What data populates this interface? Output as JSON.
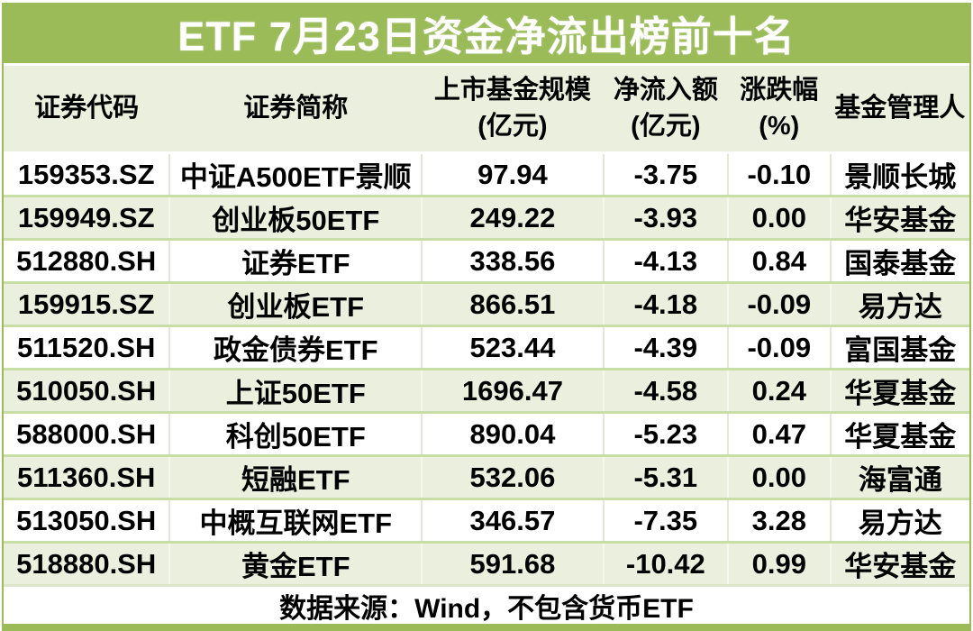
{
  "title": "ETF 7月23日资金净流出榜前十名",
  "colors": {
    "title_bg": "#9abb58",
    "title_text": "#ffffff",
    "header_bg": "#eaf0dd",
    "row_alt_bg": "#eaf0dd",
    "row_border": "#c9dda6",
    "frame_green": "#9abb58",
    "text": "#000000"
  },
  "footer": {
    "source_note": "数据来源：Wind，不包含货币ETF"
  },
  "chart_data": {
    "type": "table",
    "title": "ETF 7月23日资金净流出榜前十名",
    "columns": [
      {
        "key": "code",
        "label": "证券代码",
        "label2": ""
      },
      {
        "key": "name",
        "label": "证券简称",
        "label2": ""
      },
      {
        "key": "size",
        "label": "上市基金规模",
        "label2": "(亿元)"
      },
      {
        "key": "flow",
        "label": "净流入额",
        "label2": "(亿元)"
      },
      {
        "key": "change",
        "label": "涨跌幅",
        "label2": "(%)"
      },
      {
        "key": "manager",
        "label": "基金管理人",
        "label2": ""
      }
    ],
    "rows": [
      {
        "code": "159353.SZ",
        "name": "中证A500ETF景顺",
        "size": "97.94",
        "flow": "-3.75",
        "change": "-0.10",
        "manager": "景顺长城"
      },
      {
        "code": "159949.SZ",
        "name": "创业板50ETF",
        "size": "249.22",
        "flow": "-3.93",
        "change": "0.00",
        "manager": "华安基金"
      },
      {
        "code": "512880.SH",
        "name": "证券ETF",
        "size": "338.56",
        "flow": "-4.13",
        "change": "0.84",
        "manager": "国泰基金"
      },
      {
        "code": "159915.SZ",
        "name": "创业板ETF",
        "size": "866.51",
        "flow": "-4.18",
        "change": "-0.09",
        "manager": "易方达"
      },
      {
        "code": "511520.SH",
        "name": "政金债券ETF",
        "size": "523.44",
        "flow": "-4.39",
        "change": "-0.09",
        "manager": "富国基金"
      },
      {
        "code": "510050.SH",
        "name": "上证50ETF",
        "size": "1696.47",
        "flow": "-4.58",
        "change": "0.24",
        "manager": "华夏基金"
      },
      {
        "code": "588000.SH",
        "name": "科创50ETF",
        "size": "890.04",
        "flow": "-5.23",
        "change": "0.47",
        "manager": "华夏基金"
      },
      {
        "code": "511360.SH",
        "name": "短融ETF",
        "size": "532.06",
        "flow": "-5.31",
        "change": "0.00",
        "manager": "海富通"
      },
      {
        "code": "513050.SH",
        "name": "中概互联网ETF",
        "size": "346.57",
        "flow": "-7.35",
        "change": "3.28",
        "manager": "易方达"
      },
      {
        "code": "518880.SH",
        "name": "黄金ETF",
        "size": "591.68",
        "flow": "-10.42",
        "change": "0.99",
        "manager": "华安基金"
      }
    ]
  }
}
